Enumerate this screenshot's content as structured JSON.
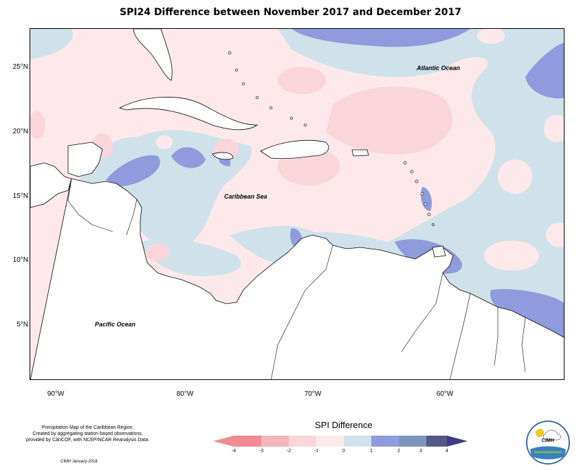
{
  "title": "SPI24 Difference between November 2017 and December 2017",
  "map": {
    "lat_labels": [
      "25°N",
      "20°N",
      "15°N",
      "10°N",
      "5°N"
    ],
    "lon_labels": [
      "90°W",
      "80°W",
      "70°W",
      "60°W"
    ],
    "regions": {
      "atlantic": "Atlantic Ocean",
      "caribbean": "Caribbean Sea",
      "pacific": "Pacific Ocean"
    }
  },
  "credits": {
    "line1": "Precipitation Map of the Caribbean Region.",
    "line2": "Created by aggregating station based observations,",
    "line3": "provided by CariCOF, with NCEP/NCAR Reanalysis Data.",
    "date": "CIMH January-2018"
  },
  "legend": {
    "title": "SPI Difference",
    "ticks": [
      "-4",
      "-3",
      "-2",
      "-1",
      "0",
      "1",
      "2",
      "3",
      "4"
    ],
    "colors": [
      "#f08c92",
      "#f4b6bb",
      "#fad5d9",
      "#fde9eb",
      "#cfe2ea",
      "#8e9bdc",
      "#7f95bd",
      "#56588a"
    ]
  },
  "logo": {
    "text": "CIMH"
  }
}
